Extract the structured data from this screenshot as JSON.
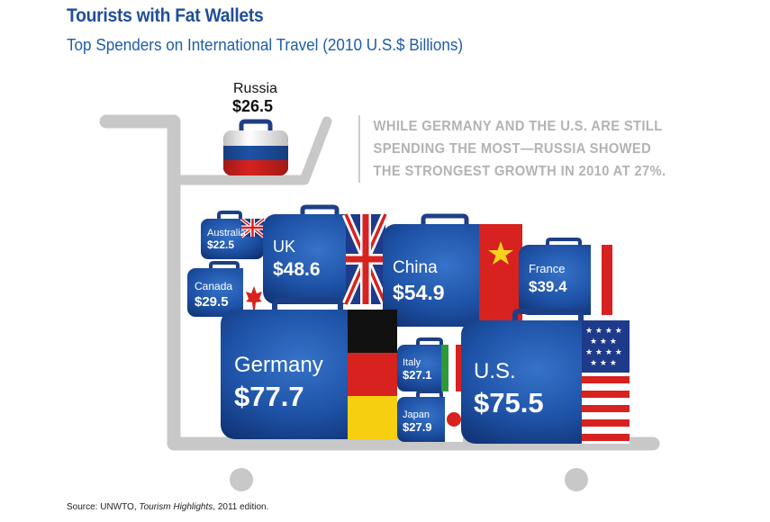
{
  "title": "Tourists with Fat Wallets",
  "subtitle": "Top Spenders on International Travel (2010 U.S.$ Billions)",
  "callout": {
    "line1": "While Germany and the U.S. are still",
    "line2": "spending the most—Russia showed",
    "line3": "the strongest growth in 2010 at 27%."
  },
  "source": {
    "prefix": "Source: UNWTO, ",
    "publication": "Tourism Highlights",
    "suffix": ", 2011 edition."
  },
  "colors": {
    "suitcase_blue": "#1e52a6",
    "cart_gray": "#c8c8c8",
    "title_blue": "#1f4e9a"
  },
  "chart_data": {
    "type": "table",
    "title": "Tourists with Fat Wallets",
    "subtitle": "Top Spenders on International Travel (2010 U.S.$ Billions)",
    "unit": "2010 U.S.$ Billions",
    "categories": [
      "Germany",
      "U.S.",
      "China",
      "UK",
      "France",
      "Canada",
      "Japan",
      "Italy",
      "Russia",
      "Australia"
    ],
    "values": [
      77.7,
      75.5,
      54.9,
      48.6,
      39.4,
      29.5,
      27.9,
      27.1,
      26.5,
      22.5
    ],
    "labels": {
      "Germany": {
        "name": "Germany",
        "value": "$77.7"
      },
      "US": {
        "name": "U.S.",
        "value": "$75.5"
      },
      "China": {
        "name": "China",
        "value": "$54.9"
      },
      "UK": {
        "name": "UK",
        "value": "$48.6"
      },
      "France": {
        "name": "France",
        "value": "$39.4"
      },
      "Canada": {
        "name": "Canada",
        "value": "$29.5"
      },
      "Japan": {
        "name": "Japan",
        "value": "$27.9"
      },
      "Italy": {
        "name": "Italy",
        "value": "$27.1"
      },
      "Russia": {
        "name": "Russia",
        "value": "$26.5"
      },
      "Australia": {
        "name": "Australia",
        "value": "$22.5"
      }
    },
    "annotation": "While Germany and the U.S. are still spending the most—Russia showed the strongest growth in 2010 at 27%."
  }
}
